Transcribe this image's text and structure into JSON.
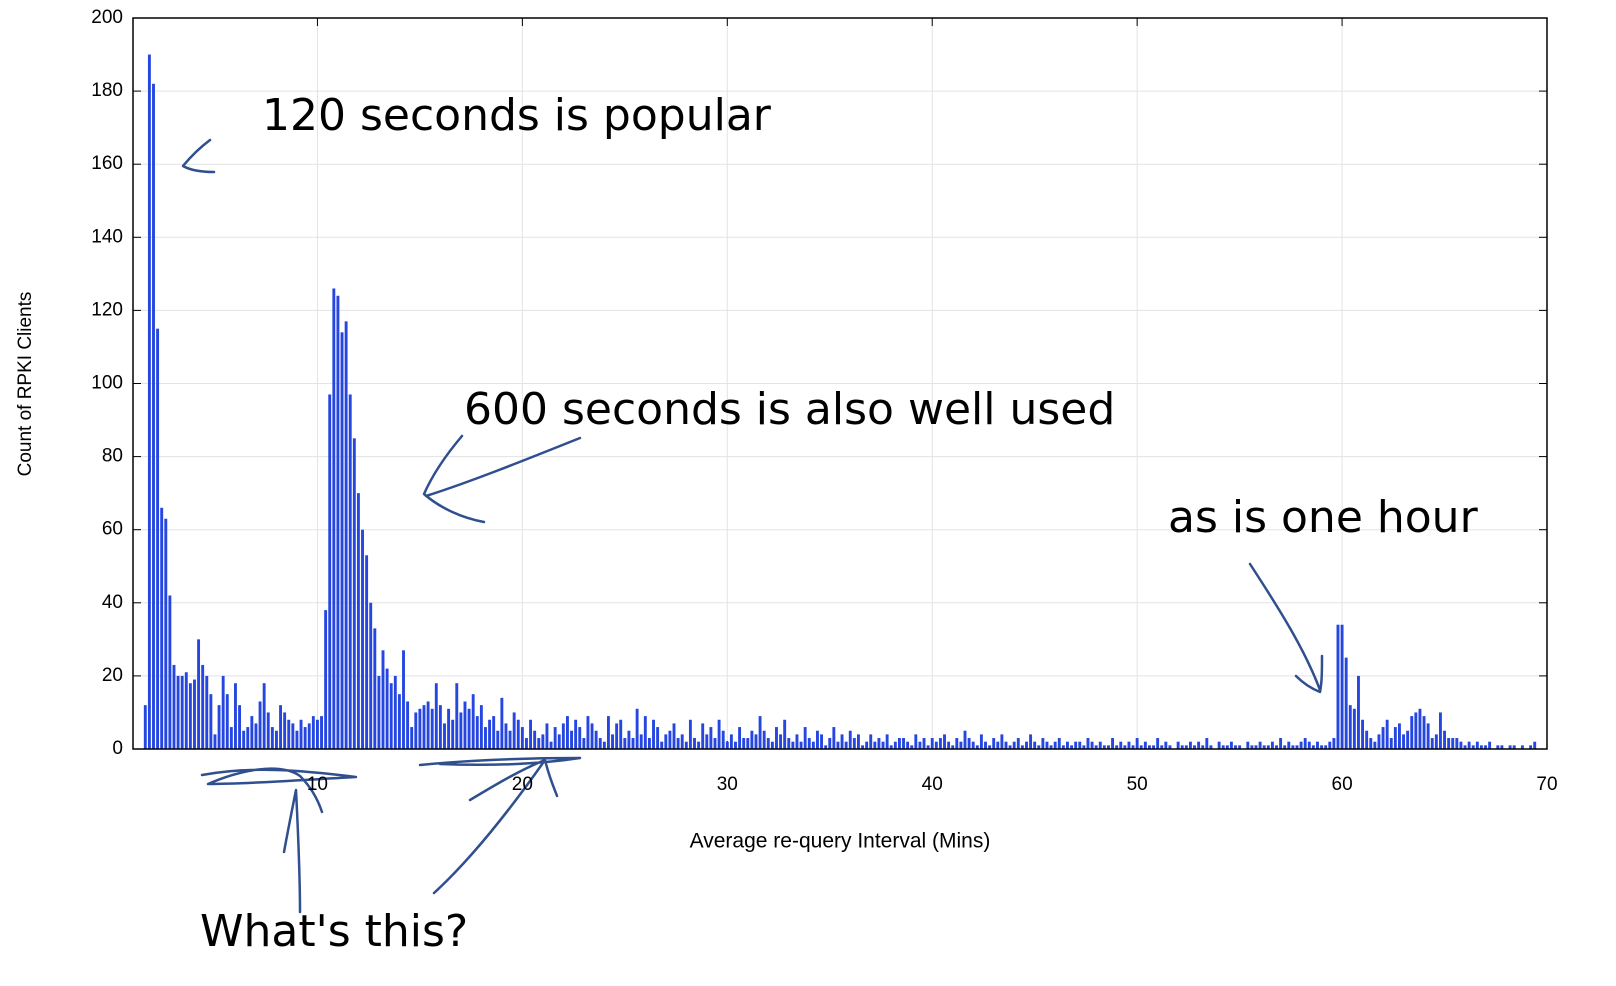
{
  "chart_data": {
    "type": "histogram",
    "x_label": "Average re-query Interval (Mins)",
    "y_label": "Count of RPKI Clients",
    "annotations": [
      "120 seconds is popular",
      "600 seconds is also well used",
      "as is one hour",
      "What's this?"
    ],
    "color": "#2546e0",
    "grid": true,
    "xlim": [
      1,
      70
    ],
    "xticks": [
      10,
      20,
      30,
      40,
      50,
      60,
      70
    ],
    "ylim": [
      0,
      200
    ],
    "yticks": [
      0,
      20,
      40,
      60,
      80,
      100,
      120,
      140,
      160,
      180,
      200
    ],
    "bins": [
      1.5,
      1.7,
      1.9,
      2.1,
      2.3,
      2.5,
      2.7,
      2.9,
      3.1,
      3.3,
      3.5,
      3.7,
      3.9,
      4.1,
      4.3,
      4.5,
      4.7,
      4.9,
      5.1,
      5.3,
      5.5,
      5.7,
      5.9,
      6.1,
      6.3,
      6.5,
      6.7,
      6.9,
      7.1,
      7.3,
      7.5,
      7.7,
      7.9,
      8.1,
      8.3,
      8.5,
      8.7,
      8.9,
      9.1,
      9.3,
      9.5,
      9.7,
      9.9,
      10.1,
      10.3,
      10.5,
      10.7,
      10.9,
      11.1,
      11.3,
      11.5,
      11.7,
      11.9,
      12.1,
      12.3,
      12.5,
      12.7,
      12.9,
      13.1,
      13.3,
      13.5,
      13.7,
      13.9,
      14.1,
      14.3,
      14.5,
      14.7,
      14.9,
      15.1,
      15.3,
      15.5,
      15.7,
      15.9,
      16.1,
      16.3,
      16.5,
      16.7,
      16.9,
      17.1,
      17.3,
      17.5,
      17.7,
      17.9,
      18.1,
      18.3,
      18.5,
      18.7,
      18.9,
      19.1,
      19.3,
      19.5,
      19.7,
      19.9,
      20.1,
      20.3,
      20.5,
      20.7,
      20.9,
      21.1,
      21.3,
      21.5,
      21.7,
      21.9,
      22.1,
      22.3,
      22.5,
      22.7,
      22.9,
      23.1,
      23.3,
      23.5,
      23.7,
      23.9,
      24.1,
      24.3,
      24.5,
      24.7,
      24.9,
      25.1,
      25.3,
      25.5,
      25.7,
      25.9,
      26.1,
      26.3,
      26.5,
      26.7,
      26.9,
      27.1,
      27.3,
      27.5,
      27.7,
      27.9,
      28.1,
      28.3,
      28.5,
      28.7,
      28.9,
      29.1,
      29.3,
      29.5,
      29.7,
      29.9,
      30.1,
      30.3,
      30.5,
      30.7,
      30.9,
      31.1,
      31.3,
      31.5,
      31.7,
      31.9,
      32.1,
      32.3,
      32.5,
      32.7,
      32.9,
      33.1,
      33.3,
      33.5,
      33.7,
      33.9,
      34.1,
      34.3,
      34.5,
      34.7,
      34.9,
      35.1,
      35.3,
      35.5,
      35.7,
      35.9,
      36.1,
      36.3,
      36.5,
      36.7,
      36.9,
      37.1,
      37.3,
      37.5,
      37.7,
      37.9,
      38.1,
      38.3,
      38.5,
      38.7,
      38.9,
      39.1,
      39.3,
      39.5,
      39.7,
      39.9,
      40.1,
      40.3,
      40.5,
      40.7,
      40.9,
      41.1,
      41.3,
      41.5,
      41.7,
      41.9,
      42.1,
      42.3,
      42.5,
      42.7,
      42.9,
      43.1,
      43.3,
      43.5,
      43.7,
      43.9,
      44.1,
      44.3,
      44.5,
      44.7,
      44.9,
      45.1,
      45.3,
      45.5,
      45.7,
      45.9,
      46.1,
      46.3,
      46.5,
      46.7,
      46.9,
      47.1,
      47.3,
      47.5,
      47.7,
      47.9,
      48.1,
      48.3,
      48.5,
      48.7,
      48.9,
      49.1,
      49.3,
      49.5,
      49.7,
      49.9,
      50.1,
      50.3,
      50.5,
      50.7,
      50.9,
      51.1,
      51.3,
      51.5,
      51.7,
      51.9,
      52.1,
      52.3,
      52.5,
      52.7,
      52.9,
      53.1,
      53.3,
      53.5,
      53.7,
      53.9,
      54.1,
      54.3,
      54.5,
      54.7,
      54.9,
      55.1,
      55.3,
      55.5,
      55.7,
      55.9,
      56.1,
      56.3,
      56.5,
      56.7,
      56.9,
      57.1,
      57.3,
      57.5,
      57.7,
      57.9,
      58.1,
      58.3,
      58.5,
      58.7,
      58.9,
      59.1,
      59.3,
      59.5,
      59.7,
      59.9,
      60.1,
      60.3,
      60.5,
      60.7,
      60.9,
      61.1,
      61.3,
      61.5,
      61.7,
      61.9,
      62.1,
      62.3,
      62.5,
      62.7,
      62.9,
      63.1,
      63.3,
      63.5,
      63.7,
      63.9,
      64.1,
      64.3,
      64.5,
      64.7,
      64.9,
      65.1,
      65.3,
      65.5,
      65.7,
      65.9,
      66.1,
      66.3,
      66.5,
      66.7,
      66.9,
      67.1,
      67.3,
      67.5,
      67.7,
      67.9,
      68.1,
      68.3,
      68.5,
      68.7,
      68.9,
      69.1,
      69.3,
      69.5
    ],
    "values": [
      12,
      190,
      182,
      115,
      66,
      63,
      42,
      23,
      20,
      20,
      21,
      18,
      19,
      30,
      23,
      20,
      15,
      4,
      12,
      20,
      15,
      6,
      18,
      12,
      5,
      6,
      9,
      7,
      13,
      18,
      10,
      6,
      5,
      12,
      10,
      8,
      7,
      5,
      8,
      6,
      7,
      9,
      8,
      9,
      38,
      97,
      126,
      124,
      114,
      117,
      97,
      85,
      70,
      60,
      53,
      40,
      33,
      20,
      27,
      22,
      18,
      20,
      15,
      27,
      13,
      6,
      10,
      11,
      12,
      13,
      11,
      18,
      12,
      7,
      11,
      8,
      18,
      10,
      13,
      11,
      15,
      9,
      12,
      6,
      8,
      9,
      5,
      14,
      7,
      5,
      10,
      8,
      6,
      3,
      8,
      5,
      3,
      4,
      7,
      2,
      6,
      4,
      7,
      9,
      5,
      8,
      6,
      3,
      9,
      7,
      5,
      3,
      2,
      9,
      4,
      7,
      8,
      3,
      5,
      3,
      11,
      4,
      9,
      3,
      8,
      6,
      2,
      4,
      5,
      7,
      3,
      4,
      2,
      8,
      3,
      2,
      7,
      4,
      6,
      3,
      8,
      5,
      2,
      4,
      2,
      6,
      3,
      3,
      5,
      4,
      9,
      5,
      3,
      2,
      6,
      4,
      8,
      3,
      2,
      4,
      2,
      6,
      3,
      2,
      5,
      4,
      1,
      3,
      6,
      2,
      4,
      2,
      5,
      3,
      4,
      1,
      2,
      4,
      2,
      3,
      2,
      4,
      1,
      2,
      3,
      3,
      2,
      1,
      4,
      2,
      3,
      1,
      3,
      2,
      3,
      4,
      2,
      1,
      3,
      2,
      5,
      3,
      2,
      1,
      4,
      2,
      1,
      3,
      2,
      4,
      2,
      1,
      2,
      3,
      1,
      2,
      4,
      2,
      1,
      3,
      2,
      1,
      2,
      3,
      1,
      2,
      1,
      2,
      2,
      1,
      3,
      2,
      1,
      2,
      1,
      1,
      3,
      1,
      2,
      1,
      2,
      1,
      3,
      1,
      2,
      1,
      1,
      3,
      1,
      2,
      1,
      0,
      2,
      1,
      1,
      2,
      1,
      2,
      1,
      3,
      1,
      0,
      2,
      1,
      1,
      2,
      1,
      1,
      0,
      2,
      1,
      1,
      2,
      1,
      1,
      2,
      1,
      3,
      1,
      2,
      1,
      1,
      2,
      3,
      2,
      1,
      2,
      1,
      1,
      2,
      3,
      34,
      34,
      25,
      12,
      11,
      20,
      8,
      5,
      3,
      2,
      4,
      6,
      8,
      3,
      6,
      7,
      4,
      5,
      9,
      10,
      11,
      9,
      7,
      3,
      4,
      10,
      5,
      3,
      3,
      3,
      2,
      1,
      2,
      1,
      2,
      1,
      1,
      2,
      0,
      1,
      1,
      0,
      1,
      1,
      0,
      1,
      0,
      1,
      2
    ]
  }
}
